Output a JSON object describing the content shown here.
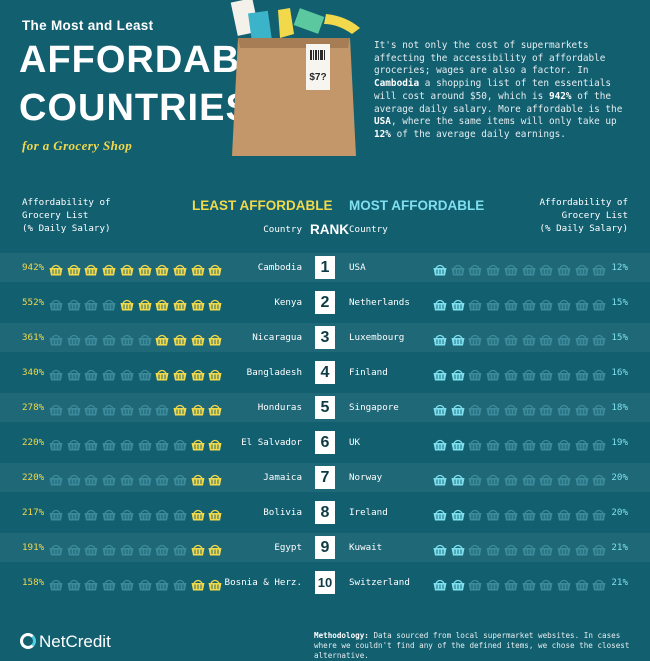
{
  "header": {
    "pre_title": "The Most and Least",
    "title_line1": "AFFORDABLE",
    "title_line2": "COUNTRIES",
    "subtitle": "for a Grocery Shop",
    "bag_price": "$7?"
  },
  "intro": {
    "p1": "It's not only the cost of supermarkets affecting the accessibility of affordable groceries; wages are also a factor. In ",
    "b1": "Cambodia",
    "p2": " a shopping list of ten essentials will cost around $50, which is ",
    "b2": "942%",
    "p3": " of the average daily salary. More affordable is the ",
    "b3": "USA",
    "p4": ", where the same items will only take up ",
    "b4": "12%",
    "p5": " of the average daily earnings."
  },
  "columns": {
    "left_metric_line1": "Affordability of",
    "left_metric_line2": "Grocery List",
    "left_metric_line3": "(% Daily Salary)",
    "right_metric_line1": "Affordability of",
    "right_metric_line2": "Grocery List",
    "right_metric_line3": "(% Daily Salary)",
    "least_title": "LEAST AFFORDABLE",
    "most_title": "MOST AFFORDABLE",
    "rank_title": "RANK",
    "country_left": "Country",
    "country_right": "Country"
  },
  "chart_data": {
    "type": "table",
    "least_affordable": [
      {
        "rank": "1",
        "country": "Cambodia",
        "pct": "942%",
        "value": 942
      },
      {
        "rank": "2",
        "country": "Kenya",
        "pct": "552%",
        "value": 552
      },
      {
        "rank": "3",
        "country": "Nicaragua",
        "pct": "361%",
        "value": 361
      },
      {
        "rank": "4",
        "country": "Bangladesh",
        "pct": "340%",
        "value": 340
      },
      {
        "rank": "5",
        "country": "Honduras",
        "pct": "278%",
        "value": 278
      },
      {
        "rank": "6",
        "country": "El Salvador",
        "pct": "220%",
        "value": 220
      },
      {
        "rank": "7",
        "country": "Jamaica",
        "pct": "220%",
        "value": 220
      },
      {
        "rank": "8",
        "country": "Bolivia",
        "pct": "217%",
        "value": 217
      },
      {
        "rank": "9",
        "country": "Egypt",
        "pct": "191%",
        "value": 191
      },
      {
        "rank": "10",
        "country": "Bosnia & Herz.",
        "pct": "158%",
        "value": 158
      }
    ],
    "most_affordable": [
      {
        "rank": "1",
        "country": "USA",
        "pct": "12%",
        "value": 12
      },
      {
        "rank": "2",
        "country": "Netherlands",
        "pct": "15%",
        "value": 15
      },
      {
        "rank": "3",
        "country": "Luxembourg",
        "pct": "15%",
        "value": 15
      },
      {
        "rank": "4",
        "country": "Finland",
        "pct": "16%",
        "value": 16
      },
      {
        "rank": "5",
        "country": "Singapore",
        "pct": "18%",
        "value": 18
      },
      {
        "rank": "6",
        "country": "UK",
        "pct": "19%",
        "value": 19
      },
      {
        "rank": "7",
        "country": "Norway",
        "pct": "20%",
        "value": 20
      },
      {
        "rank": "8",
        "country": "Ireland",
        "pct": "20%",
        "value": 20
      },
      {
        "rank": "9",
        "country": "Kuwait",
        "pct": "21%",
        "value": 21
      },
      {
        "rank": "10",
        "country": "Switzerland",
        "pct": "21%",
        "value": 21
      }
    ],
    "basket_units": 10,
    "colors": {
      "background": "#125f70",
      "least": "#f1d94b",
      "most": "#7ee0ee",
      "empty_basket": "#3c8a9a"
    }
  },
  "footer": {
    "brand": "NetCredit",
    "method_label": "Methodology:",
    "method_text": " Data sourced from local supermarket websites. In cases where we couldn't find any of the defined items, we chose the closest alternative."
  }
}
